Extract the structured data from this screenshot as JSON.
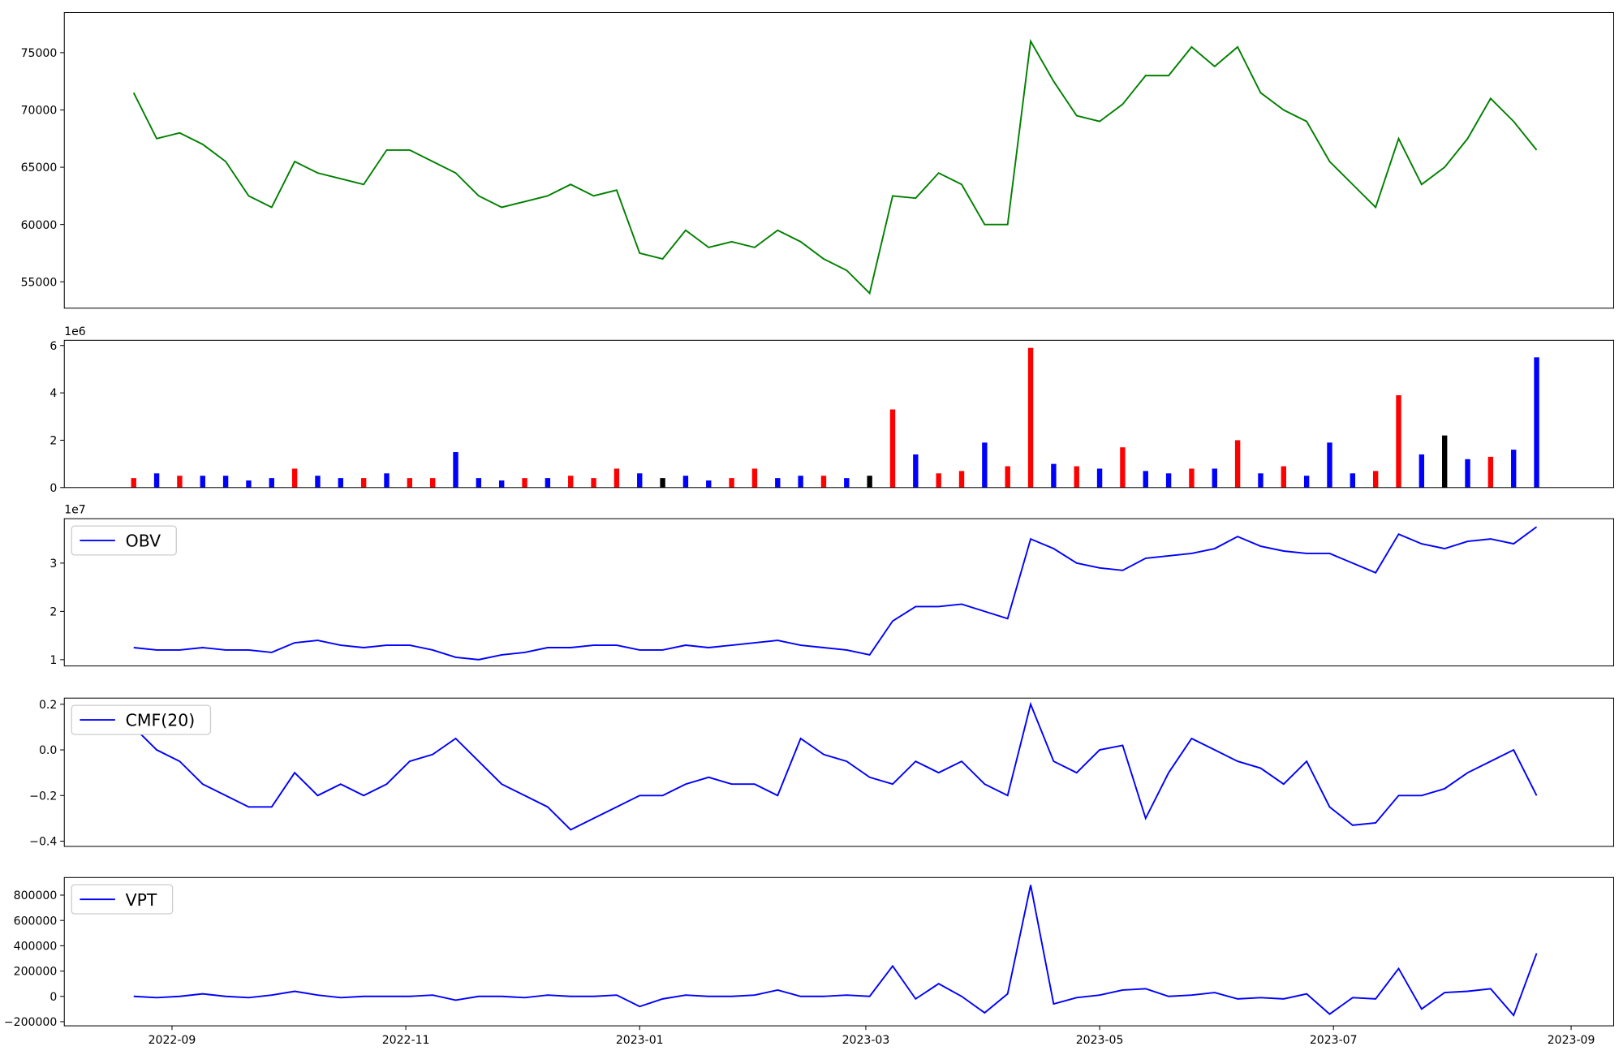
{
  "chart_data": [
    {
      "type": "line",
      "x": [
        -10,
        -4,
        2,
        8,
        14,
        20,
        26,
        32,
        38,
        44,
        50,
        56,
        62,
        68,
        74,
        80,
        86,
        92,
        98,
        104,
        110,
        116,
        122,
        128,
        134,
        140,
        146,
        152,
        158,
        164,
        170,
        176,
        182,
        188,
        194,
        200,
        206,
        212,
        218,
        224,
        230,
        236,
        242,
        248,
        254,
        260,
        266,
        272,
        278,
        284,
        290,
        296,
        302,
        308,
        314,
        320,
        326,
        332,
        338,
        344,
        350,
        356
      ],
      "series": [
        {
          "color": "green",
          "values": [
            71500,
            67500,
            68000,
            67000,
            65500,
            62500,
            61500,
            65500,
            64500,
            64000,
            63500,
            66500,
            66500,
            65500,
            64500,
            62500,
            61500,
            62000,
            62500,
            63500,
            62500,
            63000,
            57500,
            57000,
            59500,
            58000,
            58500,
            58000,
            59500,
            58500,
            57000,
            56000,
            54000,
            62500,
            62300,
            64500,
            63500,
            60000,
            60000,
            76000,
            72500,
            69500,
            69000,
            70500,
            73000,
            73000,
            75500,
            73800,
            75500,
            71500,
            70000,
            69000,
            65500,
            63500,
            61500,
            67500,
            63500,
            65000,
            67500,
            71000,
            69000,
            66500
          ]
        }
      ],
      "xlim": [
        -28.1,
        376.1
      ],
      "ylim": [
        52700,
        78500
      ],
      "yticks": [
        55000,
        60000,
        65000,
        70000,
        75000
      ]
    },
    {
      "type": "bar",
      "x": [
        -10,
        -4,
        2,
        8,
        14,
        20,
        26,
        32,
        38,
        44,
        50,
        56,
        62,
        68,
        74,
        80,
        86,
        92,
        98,
        104,
        110,
        116,
        122,
        128,
        134,
        140,
        146,
        152,
        158,
        164,
        170,
        176,
        182,
        188,
        194,
        200,
        206,
        212,
        218,
        224,
        230,
        236,
        242,
        248,
        254,
        260,
        266,
        272,
        278,
        284,
        290,
        296,
        302,
        308,
        314,
        320,
        326,
        332,
        338,
        344,
        350,
        356
      ],
      "values": [
        0.4,
        0.6,
        0.5,
        0.5,
        0.5,
        0.3,
        0.4,
        0.8,
        0.5,
        0.4,
        0.4,
        0.6,
        0.4,
        0.4,
        1.5,
        0.4,
        0.3,
        0.4,
        0.4,
        0.5,
        0.4,
        0.8,
        0.6,
        0.4,
        0.5,
        0.3,
        0.4,
        0.8,
        0.4,
        0.5,
        0.5,
        0.4,
        0.5,
        3.3,
        1.4,
        0.6,
        0.7,
        1.9,
        0.9,
        5.9,
        1.0,
        0.9,
        0.8,
        1.7,
        0.7,
        0.6,
        0.8,
        0.8,
        2.0,
        0.6,
        0.9,
        0.5,
        1.9,
        0.6,
        0.7,
        3.9,
        1.4,
        2.2,
        1.2,
        1.3,
        1.6,
        5.5
      ],
      "colors": [
        "red",
        "blue",
        "red",
        "blue",
        "blue",
        "blue",
        "blue",
        "red",
        "blue",
        "blue",
        "red",
        "blue",
        "red",
        "red",
        "blue",
        "blue",
        "blue",
        "red",
        "blue",
        "red",
        "red",
        "red",
        "blue",
        "black",
        "blue",
        "blue",
        "red",
        "red",
        "blue",
        "blue",
        "red",
        "blue",
        "black",
        "red",
        "blue",
        "red",
        "red",
        "blue",
        "red",
        "red",
        "blue",
        "red",
        "blue",
        "red",
        "blue",
        "blue",
        "red",
        "blue",
        "red",
        "blue",
        "red",
        "blue",
        "blue",
        "blue",
        "red",
        "red",
        "blue",
        "black",
        "blue",
        "red",
        "blue",
        "blue"
      ],
      "y_offset_label": "1e6",
      "xlim": [
        -28.1,
        376.1
      ],
      "ylim": [
        0,
        6.22
      ],
      "yticks": [
        0,
        2,
        4,
        6
      ]
    },
    {
      "type": "line",
      "legend": "upper left",
      "x": [
        -10,
        -4,
        2,
        8,
        14,
        20,
        26,
        32,
        38,
        44,
        50,
        56,
        62,
        68,
        74,
        80,
        86,
        92,
        98,
        104,
        110,
        116,
        122,
        128,
        134,
        140,
        146,
        152,
        158,
        164,
        170,
        176,
        182,
        188,
        194,
        200,
        206,
        212,
        218,
        224,
        230,
        236,
        242,
        248,
        254,
        260,
        266,
        272,
        278,
        284,
        290,
        296,
        302,
        308,
        314,
        320,
        326,
        332,
        338,
        344,
        350,
        356
      ],
      "series": [
        {
          "name": "OBV",
          "color": "blue",
          "values": [
            1.25,
            1.2,
            1.2,
            1.25,
            1.2,
            1.2,
            1.15,
            1.35,
            1.4,
            1.3,
            1.25,
            1.3,
            1.3,
            1.2,
            1.05,
            1.0,
            1.1,
            1.15,
            1.25,
            1.25,
            1.3,
            1.3,
            1.2,
            1.2,
            1.3,
            1.25,
            1.3,
            1.35,
            1.4,
            1.3,
            1.25,
            1.2,
            1.1,
            1.8,
            2.1,
            2.1,
            2.15,
            2.0,
            1.85,
            3.5,
            3.3,
            3.0,
            2.9,
            2.85,
            3.1,
            3.15,
            3.2,
            3.3,
            3.55,
            3.35,
            3.25,
            3.2,
            3.2,
            3.0,
            2.8,
            3.6,
            3.4,
            3.3,
            3.45,
            3.5,
            3.4,
            3.75
          ]
        }
      ],
      "y_offset_label": "1e7",
      "xlim": [
        -28.1,
        376.1
      ],
      "ylim": [
        0.87,
        3.92
      ],
      "yticks": [
        1,
        2,
        3
      ]
    },
    {
      "type": "line",
      "legend": "upper left",
      "x": [
        -10,
        -4,
        2,
        8,
        14,
        20,
        26,
        32,
        38,
        44,
        50,
        56,
        62,
        68,
        74,
        80,
        86,
        92,
        98,
        104,
        110,
        116,
        122,
        128,
        134,
        140,
        146,
        152,
        158,
        164,
        170,
        176,
        182,
        188,
        194,
        200,
        206,
        212,
        218,
        224,
        230,
        236,
        242,
        248,
        254,
        260,
        266,
        272,
        278,
        284,
        290,
        296,
        302,
        308,
        314,
        320,
        326,
        332,
        338,
        344,
        350,
        356
      ],
      "series": [
        {
          "name": "CMF(20)",
          "color": "blue",
          "values": [
            0.1,
            0.0,
            -0.05,
            -0.15,
            -0.2,
            -0.25,
            -0.25,
            -0.1,
            -0.2,
            -0.15,
            -0.2,
            -0.15,
            -0.05,
            -0.02,
            0.05,
            -0.05,
            -0.15,
            -0.2,
            -0.25,
            -0.35,
            -0.3,
            -0.25,
            -0.2,
            -0.2,
            -0.15,
            -0.12,
            -0.15,
            -0.15,
            -0.2,
            0.05,
            -0.02,
            -0.05,
            -0.12,
            -0.15,
            -0.05,
            -0.1,
            -0.05,
            -0.15,
            -0.2,
            0.2,
            -0.05,
            -0.1,
            0.0,
            0.02,
            -0.3,
            -0.1,
            0.05,
            0.0,
            -0.05,
            -0.08,
            -0.15,
            -0.05,
            -0.25,
            -0.33,
            -0.32,
            -0.2,
            -0.2,
            -0.17,
            -0.1,
            -0.05,
            0.0,
            -0.2
          ]
        }
      ],
      "xlim": [
        -28.1,
        376.1
      ],
      "ylim": [
        -0.423,
        0.227
      ],
      "yticks": [
        {
          "value": -0.4,
          "label": "−0.4"
        },
        {
          "value": -0.2,
          "label": "−0.2"
        },
        {
          "value": 0,
          "label": "0.0"
        },
        0.2
      ]
    },
    {
      "type": "line",
      "legend": "upper left",
      "x": [
        -10,
        -4,
        2,
        8,
        14,
        20,
        26,
        32,
        38,
        44,
        50,
        56,
        62,
        68,
        74,
        80,
        86,
        92,
        98,
        104,
        110,
        116,
        122,
        128,
        134,
        140,
        146,
        152,
        158,
        164,
        170,
        176,
        182,
        188,
        194,
        200,
        206,
        212,
        218,
        224,
        230,
        236,
        242,
        248,
        254,
        260,
        266,
        272,
        278,
        284,
        290,
        296,
        302,
        308,
        314,
        320,
        326,
        332,
        338,
        344,
        350,
        356
      ],
      "series": [
        {
          "name": "VPT",
          "color": "blue",
          "values": [
            0,
            -10000,
            0,
            20000,
            0,
            -10000,
            10000,
            40000,
            10000,
            -10000,
            0,
            0,
            0,
            10000,
            -30000,
            0,
            0,
            -10000,
            10000,
            0,
            0,
            10000,
            -80000,
            -20000,
            10000,
            0,
            0,
            10000,
            50000,
            0,
            0,
            10000,
            0,
            240000,
            -20000,
            100000,
            0,
            -130000,
            20000,
            880000,
            -60000,
            -10000,
            10000,
            50000,
            60000,
            0,
            10000,
            30000,
            -20000,
            -10000,
            -20000,
            20000,
            -140000,
            -10000,
            -20000,
            220000,
            -100000,
            30000,
            40000,
            60000,
            -150000,
            340000
          ]
        }
      ],
      "xlim": [
        -28.1,
        376.1
      ],
      "ylim": [
        -232800,
        939000
      ],
      "yticks": [
        {
          "value": -200000,
          "label": "−200000"
        },
        0,
        200000,
        400000,
        600000,
        800000
      ],
      "xticks": [
        {
          "value": 0,
          "label": "2022-09"
        },
        {
          "value": 61,
          "label": "2022-11"
        },
        {
          "value": 122,
          "label": "2023-01"
        },
        {
          "value": 181,
          "label": "2023-03"
        },
        {
          "value": 242,
          "label": "2023-05"
        },
        {
          "value": 303,
          "label": "2023-07"
        },
        {
          "value": 365,
          "label": "2023-09"
        }
      ]
    }
  ]
}
